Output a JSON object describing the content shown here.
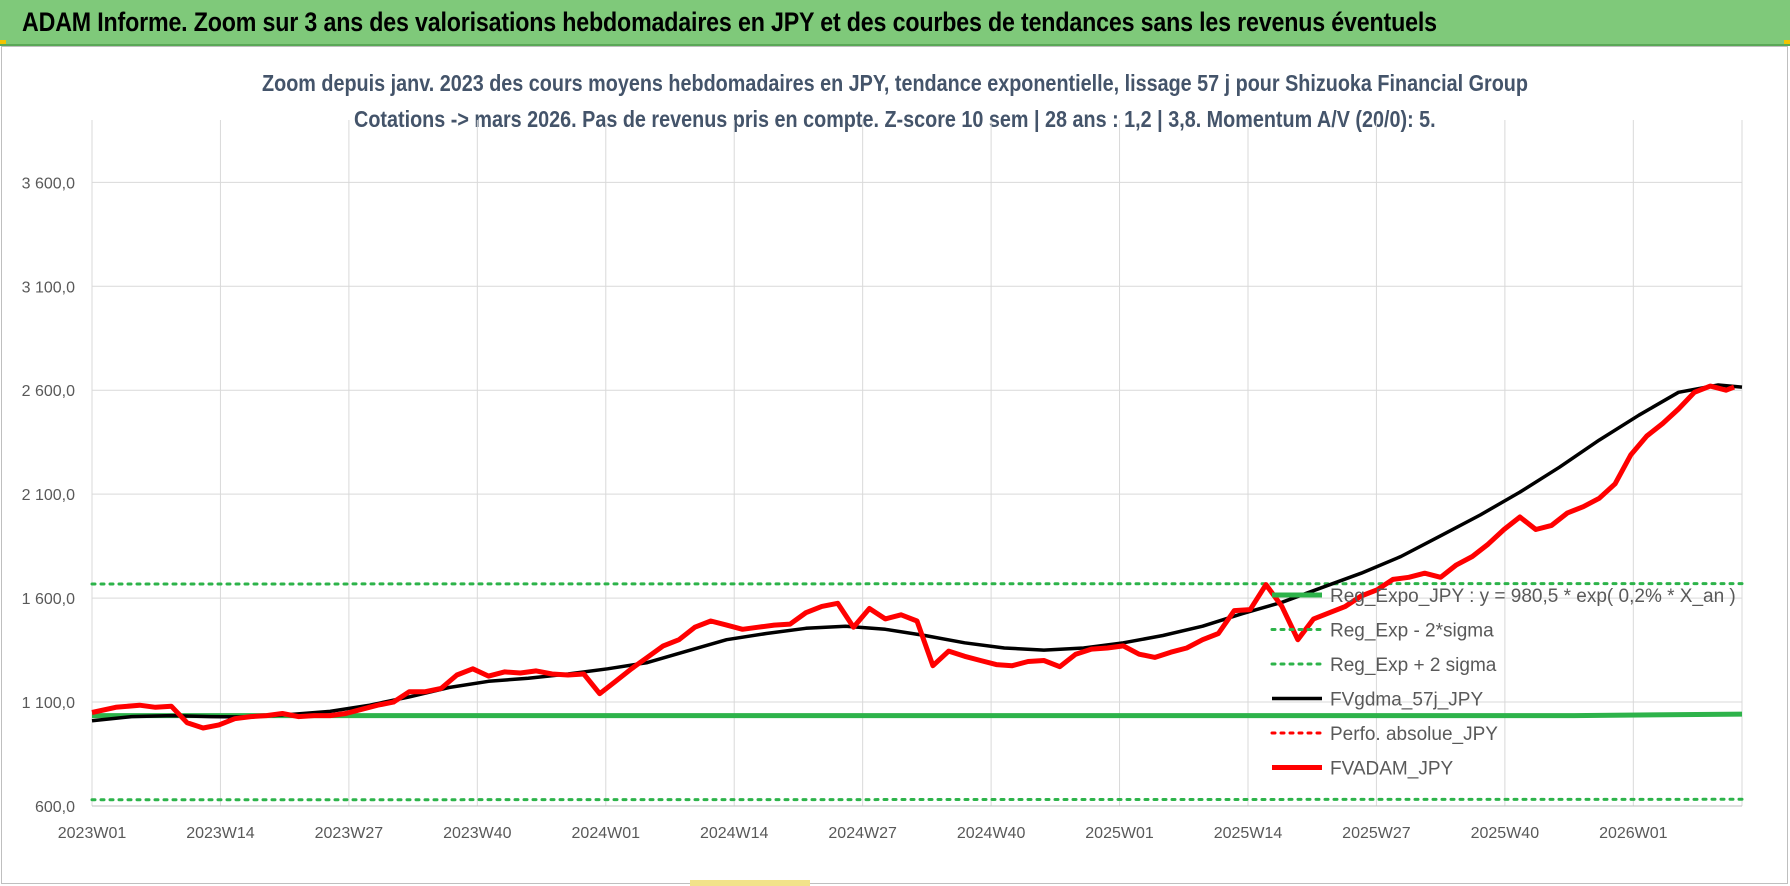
{
  "banner": {
    "title": "ADAM Informe. Zoom sur 3 ans des valorisations hebdomadaires en JPY et des courbes de tendances sans les revenus éventuels"
  },
  "chart_data": {
    "type": "line",
    "title_line1": "Zoom depuis janv. 2023 des cours moyens hebdomadaires en JPY, tendance exponentielle, lissage 57 j pour Shizuoka Financial Group",
    "title_line2": "Cotations -> mars 2026. Pas de revenus pris en compte. Z-score 10 sem | 28 ans : 1,2 | 3,8. Momentum A/V (20/0): 5.",
    "ylim": [
      600,
      3900
    ],
    "yticks": [
      600,
      1100,
      1600,
      2100,
      2600,
      3100,
      3600
    ],
    "ytick_labels": [
      "600,0",
      "1 100,0",
      "1 600,0",
      "2 100,0",
      "2 600,0",
      "3 100,0",
      "3 600,0"
    ],
    "x_tick_labels": [
      "2023W01",
      "2023W14",
      "2023W27",
      "2023W40",
      "2024W01",
      "2024W14",
      "2024W27",
      "2024W40",
      "2025W01",
      "2025W14",
      "2025W27",
      "2025W40",
      "2026W01"
    ],
    "x_tick_step_weeks": 13,
    "n_weeks": 168,
    "grid": true,
    "legend_position": "inside-right",
    "series": [
      {
        "name": "Reg_Expo_JPY : y = 980,5 * exp( 0,2% * X_an )",
        "color": "#2db34a",
        "style": "solid-thick",
        "points": [
          [
            0,
            1035
          ],
          [
            150,
            1035
          ],
          [
            167,
            1042
          ]
        ]
      },
      {
        "name": "Reg_Exp - 2*sigma",
        "color": "#2db34a",
        "style": "dotted",
        "points": [
          [
            0,
            630
          ],
          [
            167,
            632
          ]
        ]
      },
      {
        "name": "Reg_Exp + 2 sigma",
        "color": "#2db34a",
        "style": "dotted",
        "points": [
          [
            0,
            1668
          ],
          [
            167,
            1670
          ]
        ]
      },
      {
        "name": "FVgdma_57j_JPY",
        "color": "#000000",
        "style": "solid",
        "points": [
          [
            0,
            1010
          ],
          [
            5,
            1030
          ],
          [
            10,
            1035
          ],
          [
            15,
            1030
          ],
          [
            20,
            1028
          ],
          [
            25,
            1040
          ],
          [
            30,
            1055
          ],
          [
            35,
            1085
          ],
          [
            40,
            1125
          ],
          [
            45,
            1170
          ],
          [
            50,
            1200
          ],
          [
            55,
            1215
          ],
          [
            60,
            1235
          ],
          [
            65,
            1260
          ],
          [
            70,
            1290
          ],
          [
            75,
            1345
          ],
          [
            80,
            1400
          ],
          [
            85,
            1430
          ],
          [
            90,
            1455
          ],
          [
            95,
            1465
          ],
          [
            100,
            1450
          ],
          [
            105,
            1420
          ],
          [
            110,
            1385
          ],
          [
            115,
            1360
          ],
          [
            120,
            1350
          ],
          [
            125,
            1360
          ],
          [
            130,
            1385
          ],
          [
            135,
            1420
          ],
          [
            140,
            1465
          ],
          [
            145,
            1525
          ],
          [
            150,
            1580
          ],
          [
            155,
            1650
          ],
          [
            160,
            1720
          ],
          [
            165,
            1800
          ],
          [
            170,
            1900
          ],
          [
            175,
            2000
          ],
          [
            180,
            2110
          ],
          [
            185,
            2230
          ],
          [
            190,
            2360
          ],
          [
            195,
            2480
          ],
          [
            200,
            2590
          ],
          [
            205,
            2625
          ],
          [
            208,
            2615
          ]
        ]
      },
      {
        "name": "Perfo. absolue_JPY",
        "color": "#ff0000",
        "style": "dotted",
        "points": []
      },
      {
        "name": "FVADAM_JPY",
        "color": "#ff0000",
        "style": "solid-thick",
        "points": [
          [
            0,
            1050
          ],
          [
            3,
            1075
          ],
          [
            6,
            1085
          ],
          [
            8,
            1075
          ],
          [
            10,
            1080
          ],
          [
            12,
            1000
          ],
          [
            14,
            975
          ],
          [
            16,
            990
          ],
          [
            18,
            1020
          ],
          [
            20,
            1030
          ],
          [
            22,
            1035
          ],
          [
            24,
            1045
          ],
          [
            26,
            1030
          ],
          [
            28,
            1035
          ],
          [
            30,
            1035
          ],
          [
            32,
            1045
          ],
          [
            34,
            1065
          ],
          [
            36,
            1085
          ],
          [
            38,
            1100
          ],
          [
            40,
            1150
          ],
          [
            42,
            1150
          ],
          [
            44,
            1165
          ],
          [
            46,
            1230
          ],
          [
            48,
            1260
          ],
          [
            50,
            1225
          ],
          [
            52,
            1245
          ],
          [
            54,
            1240
          ],
          [
            56,
            1250
          ],
          [
            58,
            1235
          ],
          [
            60,
            1230
          ],
          [
            62,
            1235
          ],
          [
            64,
            1140
          ],
          [
            66,
            1200
          ],
          [
            68,
            1260
          ],
          [
            70,
            1315
          ],
          [
            72,
            1370
          ],
          [
            74,
            1400
          ],
          [
            76,
            1460
          ],
          [
            78,
            1490
          ],
          [
            80,
            1470
          ],
          [
            82,
            1450
          ],
          [
            84,
            1460
          ],
          [
            86,
            1470
          ],
          [
            88,
            1475
          ],
          [
            90,
            1530
          ],
          [
            92,
            1560
          ],
          [
            94,
            1575
          ],
          [
            96,
            1460
          ],
          [
            98,
            1550
          ],
          [
            100,
            1500
          ],
          [
            102,
            1520
          ],
          [
            104,
            1490
          ],
          [
            106,
            1275
          ],
          [
            108,
            1345
          ],
          [
            110,
            1320
          ],
          [
            112,
            1300
          ],
          [
            114,
            1280
          ],
          [
            116,
            1275
          ],
          [
            118,
            1295
          ],
          [
            120,
            1300
          ],
          [
            122,
            1270
          ],
          [
            124,
            1330
          ],
          [
            126,
            1355
          ],
          [
            128,
            1360
          ],
          [
            130,
            1370
          ],
          [
            132,
            1330
          ],
          [
            134,
            1315
          ],
          [
            136,
            1340
          ],
          [
            138,
            1360
          ],
          [
            140,
            1400
          ],
          [
            142,
            1430
          ],
          [
            144,
            1540
          ],
          [
            146,
            1545
          ],
          [
            148,
            1665
          ],
          [
            150,
            1560
          ],
          [
            152,
            1400
          ],
          [
            154,
            1500
          ],
          [
            156,
            1530
          ],
          [
            158,
            1560
          ],
          [
            160,
            1610
          ],
          [
            162,
            1640
          ],
          [
            164,
            1690
          ],
          [
            166,
            1700
          ],
          [
            168,
            1720
          ],
          [
            170,
            1700
          ],
          [
            172,
            1760
          ],
          [
            174,
            1800
          ],
          [
            176,
            1860
          ],
          [
            178,
            1930
          ],
          [
            180,
            1990
          ],
          [
            182,
            1930
          ],
          [
            184,
            1950
          ],
          [
            186,
            2010
          ],
          [
            188,
            2040
          ],
          [
            190,
            2080
          ],
          [
            192,
            2150
          ],
          [
            194,
            2290
          ],
          [
            196,
            2380
          ],
          [
            198,
            2440
          ],
          [
            200,
            2510
          ],
          [
            202,
            2590
          ],
          [
            204,
            2620
          ],
          [
            206,
            2600
          ],
          [
            207,
            2615
          ]
        ]
      }
    ]
  }
}
